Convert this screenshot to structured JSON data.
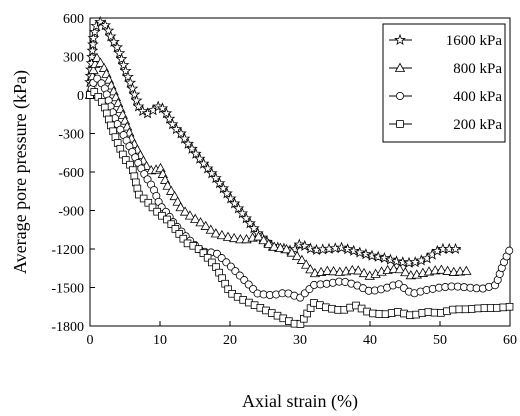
{
  "chart_data": {
    "type": "line",
    "xlabel": "Axial strain (%)",
    "ylabel": "Average pore pressure (kPa)",
    "xlim": [
      0,
      60
    ],
    "ylim": [
      -1800,
      600
    ],
    "xticks": [
      0,
      10,
      20,
      30,
      40,
      50,
      60
    ],
    "yticks": [
      600,
      300,
      0,
      -300,
      -600,
      -900,
      -1200,
      -1500,
      -1800
    ],
    "grid": false,
    "legend_position": "top-right",
    "series": [
      {
        "name": "1600 kPa",
        "marker": "star",
        "x": [
          0,
          0.5,
          1,
          1.5,
          2,
          2.5,
          3,
          4,
          5,
          6,
          7,
          8,
          9,
          10,
          11,
          12,
          13,
          14,
          16,
          18,
          20,
          22,
          24,
          26,
          28,
          29,
          30,
          32,
          34,
          36,
          38,
          40,
          42,
          44,
          46,
          48,
          50,
          51,
          52,
          53
        ],
        "y": [
          100,
          450,
          560,
          570,
          555,
          520,
          450,
          360,
          200,
          60,
          -100,
          -150,
          -120,
          -80,
          -150,
          -250,
          -300,
          -380,
          -520,
          -650,
          -800,
          -940,
          -1080,
          -1180,
          -1200,
          -1220,
          -1160,
          -1210,
          -1200,
          -1190,
          -1220,
          -1250,
          -1270,
          -1300,
          -1310,
          -1280,
          -1200,
          -1200,
          -1200,
          -1200
        ]
      },
      {
        "name": "800 kPa",
        "marker": "triangle",
        "x": [
          0,
          0.5,
          1,
          2,
          3,
          4,
          5,
          6,
          7,
          8,
          9,
          10,
          11,
          12,
          13,
          14,
          16,
          18,
          20,
          22,
          24,
          26,
          28,
          30,
          32,
          34,
          36,
          38,
          40,
          42,
          44,
          46,
          48,
          50,
          52,
          54
        ],
        "y": [
          0,
          200,
          290,
          210,
          80,
          -60,
          -200,
          -350,
          -450,
          -550,
          -600,
          -560,
          -700,
          -780,
          -880,
          -930,
          -1000,
          -1080,
          -1110,
          -1130,
          -1100,
          -1180,
          -1200,
          -1270,
          -1390,
          -1370,
          -1380,
          -1360,
          -1410,
          -1370,
          -1350,
          -1410,
          -1380,
          -1360,
          -1380,
          -1370
        ]
      },
      {
        "name": "400 kPa",
        "marker": "circle",
        "x": [
          0,
          0.5,
          1,
          2,
          3,
          4,
          5,
          6,
          7,
          8,
          9,
          10,
          11,
          12,
          13,
          14,
          16,
          18,
          20,
          22,
          24,
          26,
          28,
          30,
          32,
          34,
          36,
          38,
          40,
          42,
          44,
          46,
          48,
          50,
          52,
          54,
          56,
          58,
          59,
          60
        ],
        "y": [
          0,
          100,
          130,
          70,
          -100,
          -240,
          -330,
          -440,
          -540,
          -640,
          -720,
          -860,
          -920,
          -1000,
          -1060,
          -1120,
          -1220,
          -1230,
          -1330,
          -1440,
          -1550,
          -1560,
          -1540,
          -1580,
          -1480,
          -1470,
          -1450,
          -1480,
          -1530,
          -1510,
          -1470,
          -1550,
          -1520,
          -1500,
          -1490,
          -1500,
          -1510,
          -1480,
          -1320,
          -1200
        ]
      },
      {
        "name": "200 kPa",
        "marker": "square",
        "x": [
          0,
          0.5,
          1,
          2,
          3,
          4,
          5,
          6,
          7,
          8,
          9,
          10,
          11,
          12,
          13,
          14,
          15,
          16,
          18,
          20,
          22,
          24,
          26,
          28,
          29,
          30,
          32,
          34,
          36,
          38,
          40,
          42,
          44,
          46,
          48,
          50,
          52,
          54,
          56,
          58,
          60
        ],
        "y": [
          0,
          30,
          0,
          -80,
          -240,
          -380,
          -500,
          -560,
          -780,
          -820,
          -880,
          -930,
          -970,
          -1030,
          -1100,
          -1160,
          -1180,
          -1220,
          -1340,
          -1540,
          -1600,
          -1650,
          -1700,
          -1750,
          -1780,
          -1790,
          -1620,
          -1660,
          -1680,
          -1640,
          -1700,
          -1710,
          -1690,
          -1720,
          -1690,
          -1700,
          -1670,
          -1670,
          -1660,
          -1660,
          -1650
        ]
      }
    ]
  }
}
